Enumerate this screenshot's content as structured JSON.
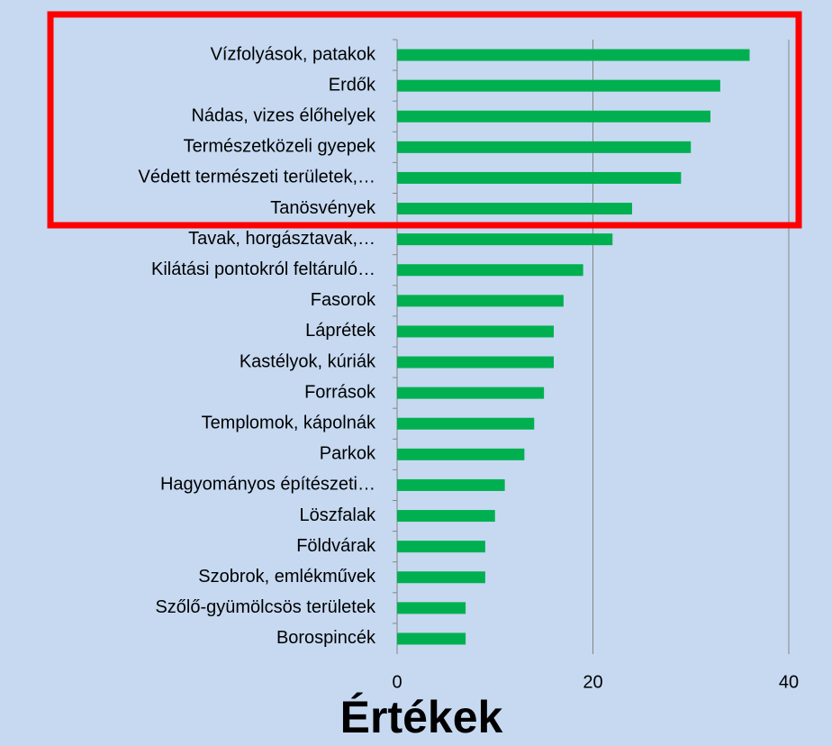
{
  "chart_data": {
    "type": "barh",
    "xlabel": "Értékek",
    "categories": [
      "Vízfolyások, patakok",
      "Erdők",
      "Nádas, vizes élőhelyek",
      "Természetközeli gyepek",
      "Védett természeti területek,…",
      "Tanösvények",
      "Tavak, horgásztavak,…",
      "Kilátási pontokról feltáruló…",
      "Fasorok",
      "Láprétek",
      "Kastélyok, kúriák",
      "Források",
      "Templomok, kápolnák",
      "Parkok",
      "Hagyományos építészeti…",
      "Löszfalak",
      "Földvárak",
      "Szobrok, emlékművek",
      "Szőlő-gyümölcsös területek",
      "Borospincék"
    ],
    "values": [
      36,
      33,
      32,
      30,
      29,
      24,
      22,
      19,
      17,
      16,
      16,
      15,
      14,
      13,
      11,
      10,
      9,
      9,
      7,
      7
    ],
    "color": "#00b050",
    "xlim": [
      0,
      40
    ],
    "xticks": [
      0,
      20,
      40
    ],
    "grid": true
  }
}
